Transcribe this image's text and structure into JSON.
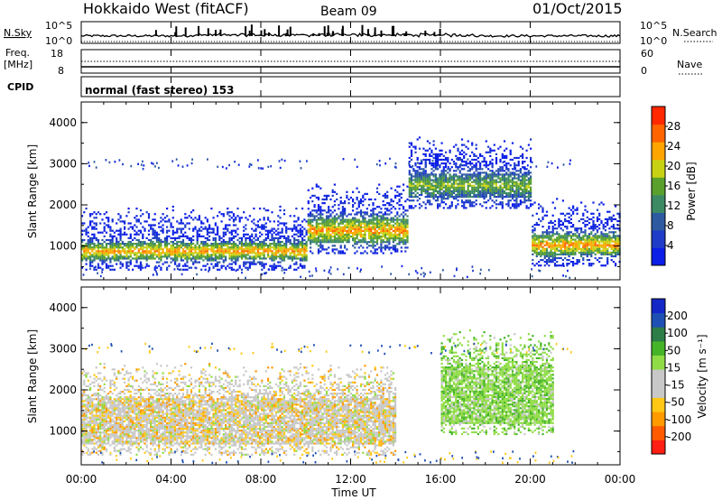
{
  "header": {
    "title": "Hokkaido West (fitACF)",
    "beam": "Beam 09",
    "date": "01/Oct/2015"
  },
  "top_panels": {
    "nsky_label": "N.Sky",
    "nsky_ticks": [
      "10^5",
      "10^0"
    ],
    "nsearch_label": "N.Search",
    "nsearch_ticks": [
      "10^5",
      "10^0"
    ],
    "freq_label_1": "Freq.",
    "freq_label_2": "[MHz]",
    "freq_ticks": [
      "18",
      "8"
    ],
    "nave_label": "Nave",
    "nave_ticks": [
      "60",
      "0"
    ],
    "cpid_label": "CPID",
    "cpid_value": "normal (fast stereo) 153"
  },
  "chart_data": [
    {
      "type": "heatmap",
      "name": "power",
      "ylabel": "Slant Range [km]",
      "y_ticks": [
        "4000",
        "3000",
        "2000",
        "1000"
      ],
      "ylim": [
        180,
        4500
      ],
      "colorbar_label": "Power [dB]",
      "colorbar_ticks": [
        "28",
        "24",
        "20",
        "16",
        "12",
        "8",
        "4"
      ],
      "colorbar_range": [
        0,
        30
      ],
      "colors": [
        "#0a1ee6",
        "#1e3cc8",
        "#2d5aa0",
        "#3c8a64",
        "#5aa02d",
        "#c8d214",
        "#ffa500",
        "#ff6400",
        "#ff2800"
      ],
      "features": [
        {
          "range_start_ut": 0,
          "range_end_ut": 10,
          "band_low_km": 700,
          "band_high_km": 1100,
          "peak_db": 24
        },
        {
          "range_start_ut": 10,
          "range_end_ut": 14.5,
          "band_low_km": 1100,
          "band_high_km": 1700,
          "peak_db": 24
        },
        {
          "range_start_ut": 14.5,
          "range_end_ut": 20,
          "band_low_km": 2200,
          "band_high_km": 2800,
          "peak_db": 16
        },
        {
          "range_start_ut": 20,
          "range_end_ut": 24,
          "band_low_km": 800,
          "band_high_km": 1300,
          "peak_db": 24
        }
      ]
    },
    {
      "type": "heatmap",
      "name": "velocity",
      "ylabel": "Slant Range [km]",
      "y_ticks": [
        "4000",
        "3000",
        "2000",
        "1000"
      ],
      "ylim": [
        180,
        4500
      ],
      "colorbar_label": "Velocity [m s⁻¹]",
      "colorbar_ticks": [
        "200",
        "100",
        "50",
        "15",
        "-15",
        "-50",
        "-100",
        "-200"
      ],
      "colorbar_range": [
        -250,
        250
      ],
      "colors": [
        "#ff1e14",
        "#ff5a00",
        "#ff9a00",
        "#ffc814",
        "#c8c8c8",
        "#c8c8c8",
        "#90dc46",
        "#46b428",
        "#2d7d46",
        "#1e50b4",
        "#1428c8"
      ],
      "features": [
        {
          "range_start_ut": 0,
          "range_end_ut": 14,
          "band_low_km": 700,
          "band_high_km": 1800,
          "velocity": 0
        },
        {
          "range_start_ut": 16,
          "range_end_ut": 21,
          "band_low_km": 1200,
          "band_high_km": 2600,
          "velocity": 50
        }
      ]
    }
  ],
  "x_axis": {
    "label": "Time UT",
    "ticks": [
      "00:00",
      "04:00",
      "08:00",
      "12:00",
      "16:00",
      "20:00",
      "00:00"
    ],
    "range_hours": [
      0,
      24
    ]
  }
}
